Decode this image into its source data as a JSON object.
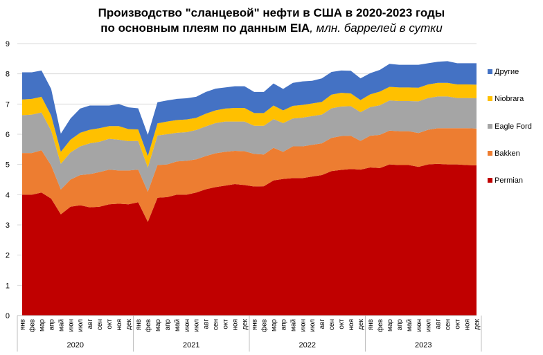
{
  "chart_data": {
    "type": "area",
    "stacked": true,
    "title_line1": "Производство \"сланцевой\" нефти в США в 2020-2023 годы",
    "title_line2_bold": "по основным плеям по данным EIA",
    "title_line2_italic": ", млн. баррелей в сутки",
    "ylim": [
      0,
      9
    ],
    "yticks": [
      "0",
      "1",
      "2",
      "3",
      "4",
      "5",
      "6",
      "7",
      "8",
      "9"
    ],
    "grid": "horizontal",
    "legend_position": "right",
    "months": [
      "янв",
      "фев",
      "мар",
      "апр",
      "май",
      "июн",
      "июл",
      "авг",
      "сен",
      "окт",
      "ноя",
      "дек"
    ],
    "years": [
      "2020",
      "2021",
      "2022",
      "2023"
    ],
    "series": [
      {
        "name": "Permian",
        "color": "#C00000",
        "values": [
          4.0,
          4.0,
          4.07,
          3.87,
          3.35,
          3.6,
          3.65,
          3.58,
          3.6,
          3.68,
          3.7,
          3.68,
          3.75,
          3.1,
          3.9,
          3.92,
          4.0,
          4.0,
          4.07,
          4.18,
          4.25,
          4.3,
          4.35,
          4.32,
          4.27,
          4.28,
          4.47,
          4.52,
          4.55,
          4.55,
          4.6,
          4.65,
          4.78,
          4.82,
          4.85,
          4.83,
          4.9,
          4.88,
          5.0,
          4.98,
          4.98,
          4.92,
          5.0,
          5.02,
          5.0,
          5.0,
          4.98,
          4.97
        ]
      },
      {
        "name": "Bakken",
        "color": "#ED7D31",
        "values": [
          1.38,
          1.38,
          1.4,
          1.1,
          0.82,
          0.9,
          1.0,
          1.1,
          1.15,
          1.15,
          1.1,
          1.12,
          1.08,
          1.0,
          1.08,
          1.08,
          1.1,
          1.12,
          1.1,
          1.1,
          1.12,
          1.12,
          1.1,
          1.12,
          1.08,
          1.05,
          1.08,
          0.9,
          1.05,
          1.05,
          1.05,
          1.05,
          1.1,
          1.12,
          1.1,
          0.95,
          1.05,
          1.1,
          1.12,
          1.12,
          1.12,
          1.12,
          1.15,
          1.18,
          1.2,
          1.2,
          1.22,
          1.22
        ]
      },
      {
        "name": "Eagle Ford",
        "color": "#A5A5A5",
        "values": [
          1.25,
          1.27,
          1.25,
          1.15,
          0.85,
          0.9,
          0.95,
          1.02,
          1.0,
          1.02,
          1.02,
          0.97,
          0.95,
          0.8,
          0.98,
          1.0,
          0.95,
          0.95,
          0.97,
          0.98,
          1.0,
          1.0,
          0.97,
          0.98,
          0.93,
          0.95,
          0.95,
          0.95,
          0.92,
          0.95,
          0.95,
          0.95,
          0.98,
          0.98,
          0.98,
          0.95,
          0.95,
          0.98,
          1.0,
          1.0,
          1.0,
          1.05,
          1.05,
          1.05,
          1.05,
          1.0,
          1.0,
          1.0
        ]
      },
      {
        "name": "Niobrara",
        "color": "#FFC000",
        "values": [
          0.52,
          0.52,
          0.52,
          0.5,
          0.4,
          0.42,
          0.45,
          0.45,
          0.45,
          0.42,
          0.45,
          0.4,
          0.38,
          0.38,
          0.4,
          0.42,
          0.42,
          0.42,
          0.4,
          0.42,
          0.42,
          0.43,
          0.45,
          0.45,
          0.42,
          0.42,
          0.45,
          0.42,
          0.42,
          0.42,
          0.42,
          0.42,
          0.45,
          0.45,
          0.42,
          0.4,
          0.42,
          0.45,
          0.45,
          0.45,
          0.45,
          0.45,
          0.45,
          0.45,
          0.45,
          0.45,
          0.45,
          0.45
        ]
      },
      {
        "name": "Другие",
        "color": "#4472C4",
        "values": [
          0.9,
          0.88,
          0.87,
          0.88,
          0.6,
          0.7,
          0.8,
          0.8,
          0.75,
          0.68,
          0.73,
          0.72,
          0.7,
          0.7,
          0.7,
          0.7,
          0.7,
          0.7,
          0.7,
          0.72,
          0.72,
          0.7,
          0.72,
          0.72,
          0.7,
          0.7,
          0.73,
          0.71,
          0.76,
          0.78,
          0.75,
          0.78,
          0.75,
          0.74,
          0.75,
          0.72,
          0.7,
          0.72,
          0.76,
          0.75,
          0.75,
          0.76,
          0.7,
          0.7,
          0.72,
          0.7,
          0.7,
          0.71
        ]
      }
    ],
    "legend_order": [
      "Другие",
      "Niobrara",
      "Eagle Ford",
      "Bakken",
      "Permian"
    ]
  }
}
